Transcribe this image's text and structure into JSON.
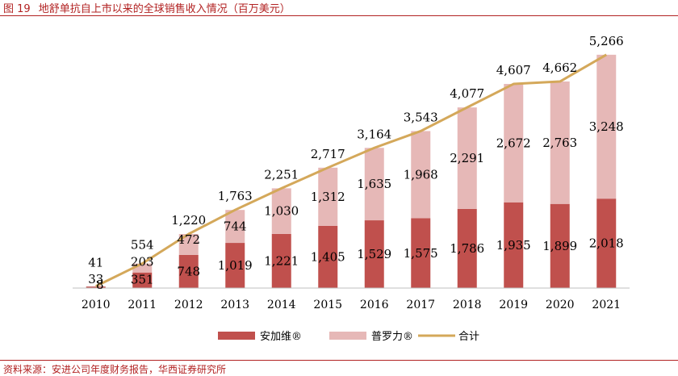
{
  "figure": {
    "number": "图 19",
    "title": "地舒单抗自上市以来的全球销售收入情况（百万美元）"
  },
  "source": "资料来源：安进公司年度财务报告，华西证券研究所",
  "colors": {
    "series1": "#c0504d",
    "series2": "#e6b8b7",
    "total": "#d4a85a",
    "accent": "#b22222"
  },
  "chart_data": {
    "type": "bar",
    "stacked": true,
    "categories": [
      "2010",
      "2011",
      "2012",
      "2013",
      "2014",
      "2015",
      "2016",
      "2017",
      "2018",
      "2019",
      "2020",
      "2021"
    ],
    "series": [
      {
        "name": "安加维®",
        "values": [
          33,
          351,
          748,
          1019,
          1221,
          1405,
          1529,
          1575,
          1786,
          1935,
          1899,
          2018
        ],
        "labels": [
          "33",
          "351",
          "748",
          "1,019",
          "1,221",
          "1,405",
          "1,529",
          "1,575",
          "1,786",
          "1,935",
          "1,899",
          "2,018"
        ]
      },
      {
        "name": "普罗力®",
        "values": [
          8,
          203,
          472,
          744,
          1030,
          1312,
          1635,
          1968,
          2291,
          2672,
          2763,
          3248
        ],
        "labels": [
          "8",
          "203",
          "472",
          "744",
          "1,030",
          "1,312",
          "1,635",
          "1,968",
          "2,291",
          "2,672",
          "2,763",
          "3,248"
        ]
      },
      {
        "name": "合计",
        "type": "line",
        "values": [
          41,
          554,
          1220,
          1763,
          2251,
          2717,
          3164,
          3543,
          4077,
          4607,
          4662,
          5266
        ],
        "labels": [
          "41",
          "554",
          "1,220",
          "1,763",
          "2,251",
          "2,717",
          "3,164",
          "3,543",
          "4,077",
          "4,607",
          "4,662",
          "5,266"
        ]
      }
    ],
    "ylim": [
      0,
      5500
    ],
    "grid": false,
    "legend": "bottom"
  }
}
